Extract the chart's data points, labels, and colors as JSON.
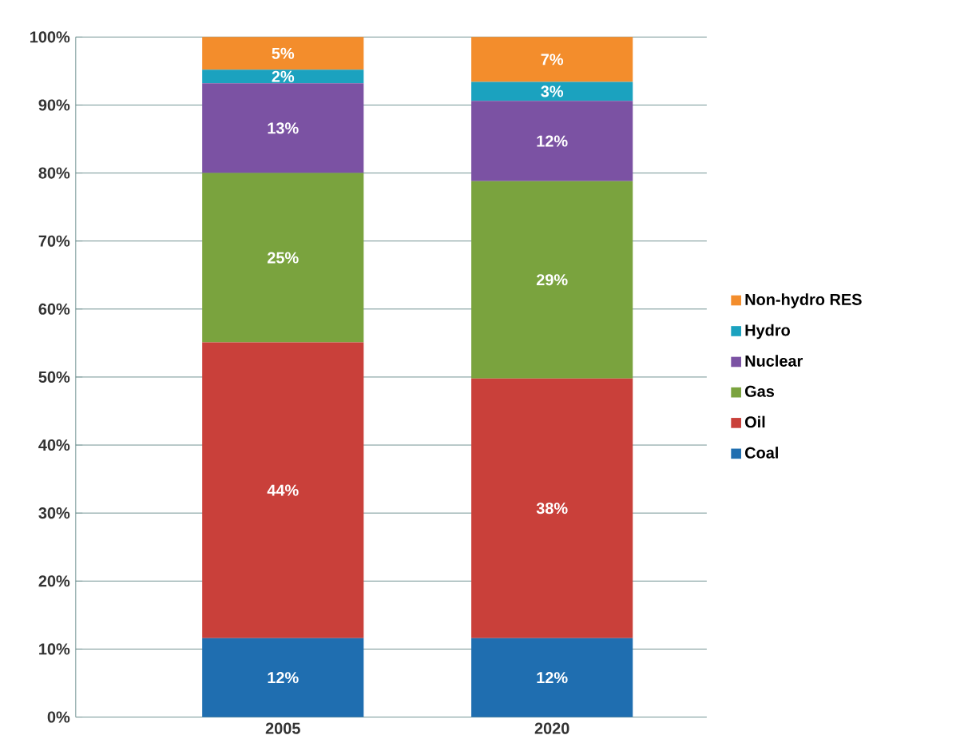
{
  "chart_data": {
    "type": "bar",
    "stacked": true,
    "categories": [
      "2005",
      "2020"
    ],
    "series": [
      {
        "name": "Coal",
        "color": "#1f6eb0",
        "values": [
          11.6,
          11.6
        ],
        "value_labels": [
          "12%",
          "12%"
        ]
      },
      {
        "name": "Oil",
        "color": "#c9403a",
        "values": [
          43.5,
          38.2
        ],
        "value_labels": [
          "44%",
          "38%"
        ]
      },
      {
        "name": "Gas",
        "color": "#7aa33e",
        "values": [
          24.9,
          29.0
        ],
        "value_labels": [
          "25%",
          "29%"
        ]
      },
      {
        "name": "Nuclear",
        "color": "#7b52a3",
        "values": [
          13.2,
          11.8
        ],
        "value_labels": [
          "13%",
          "12%"
        ]
      },
      {
        "name": "Hydro",
        "color": "#1ba2bf",
        "values": [
          2.0,
          2.8
        ],
        "value_labels": [
          "2%",
          "3%"
        ]
      },
      {
        "name": "Non-hydro RES",
        "color": "#f38d2c",
        "values": [
          4.8,
          6.6
        ],
        "value_labels": [
          "5%",
          "7%"
        ]
      }
    ],
    "ylim": [
      0,
      100
    ],
    "yticks": [
      {
        "value": 0,
        "label": "0%"
      },
      {
        "value": 10,
        "label": "10%"
      },
      {
        "value": 20,
        "label": "20%"
      },
      {
        "value": 30,
        "label": "30%"
      },
      {
        "value": 40,
        "label": "40%"
      },
      {
        "value": 50,
        "label": "50%"
      },
      {
        "value": 60,
        "label": "60%"
      },
      {
        "value": 70,
        "label": "70%"
      },
      {
        "value": 80,
        "label": "80%"
      },
      {
        "value": 90,
        "label": "90%"
      },
      {
        "value": 100,
        "label": "100%"
      }
    ],
    "grid": "y",
    "legend": "right"
  }
}
